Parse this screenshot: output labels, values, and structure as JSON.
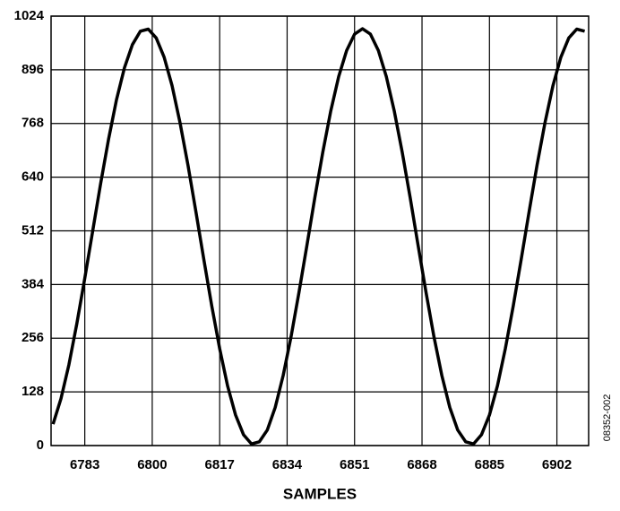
{
  "chart_data": {
    "type": "line",
    "x_label": "SAMPLES",
    "note": "08352-002",
    "x": [
      6775,
      6777,
      6779,
      6781,
      6783,
      6785,
      6787,
      6789,
      6791,
      6793,
      6795,
      6797,
      6799,
      6801,
      6803,
      6805,
      6807,
      6809,
      6811,
      6813,
      6815,
      6817,
      6819,
      6821,
      6823,
      6825,
      6827,
      6829,
      6831,
      6833,
      6835,
      6837,
      6839,
      6841,
      6843,
      6845,
      6847,
      6849,
      6851,
      6853,
      6855,
      6857,
      6859,
      6861,
      6863,
      6865,
      6867,
      6869,
      6871,
      6873,
      6875,
      6877,
      6879,
      6881,
      6883,
      6885,
      6887,
      6889,
      6891,
      6893,
      6895,
      6897,
      6899,
      6901,
      6903,
      6905,
      6907,
      6909
    ],
    "values": [
      51,
      112,
      193,
      291,
      399,
      512,
      625,
      731,
      825,
      901,
      956,
      988,
      993,
      972,
      926,
      858,
      770,
      669,
      558,
      444,
      333,
      231,
      142,
      73,
      26,
      4,
      9,
      37,
      91,
      167,
      260,
      366,
      478,
      592,
      700,
      798,
      880,
      942,
      981,
      994,
      981,
      942,
      880,
      798,
      700,
      592,
      478,
      366,
      260,
      167,
      91,
      37,
      9,
      4,
      26,
      73,
      142,
      231,
      333,
      444,
      558,
      669,
      770,
      858,
      926,
      972,
      993,
      988
    ],
    "color": "#000000",
    "xlim": [
      6774.5,
      6910
    ],
    "xticks": [
      6783,
      6800,
      6817,
      6834,
      6851,
      6868,
      6885,
      6902
    ],
    "ylim": [
      0,
      1024
    ],
    "yticks": [
      0,
      128,
      256,
      384,
      512,
      640,
      768,
      896,
      1024
    ],
    "grid": true
  }
}
